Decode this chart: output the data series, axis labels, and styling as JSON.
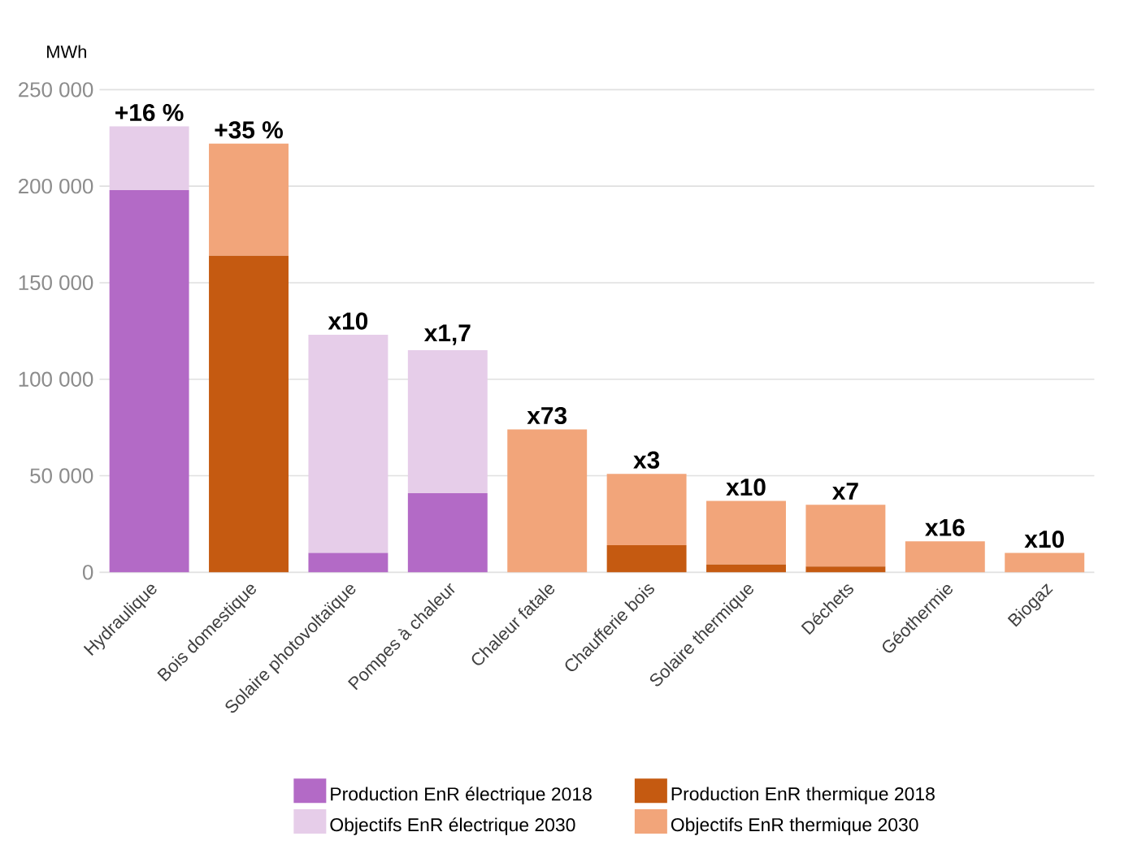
{
  "chart_data": {
    "type": "bar",
    "stacked": true,
    "ylabel": "MWh",
    "categories": [
      "Hydraulique",
      "Bois domestique",
      "Solaire photovoltaïque",
      "Pompes à chaleur",
      "Chaleur fatale",
      "Chaufferie bois",
      "Solaire thermique",
      "Déchets",
      "Géothermie",
      "Biogaz"
    ],
    "series": [
      {
        "name": "Production EnR électrique 2018",
        "color": "#b36ac6",
        "values": [
          198000,
          null,
          10000,
          41000,
          null,
          null,
          null,
          null,
          null,
          null
        ]
      },
      {
        "name": "Production EnR thermique 2018",
        "color": "#c55a11",
        "values": [
          null,
          164000,
          null,
          null,
          null,
          14000,
          4000,
          3000,
          null,
          null
        ]
      },
      {
        "name": "Objectifs EnR électrique 2030",
        "color": "#e6cde9",
        "values": [
          33000,
          null,
          113000,
          74000,
          null,
          null,
          null,
          null,
          null,
          null
        ]
      },
      {
        "name": "Objectifs EnR thermique 2030",
        "color": "#f2a57a",
        "values": [
          null,
          58000,
          null,
          null,
          74000,
          37000,
          33000,
          32000,
          16000,
          10000
        ]
      }
    ],
    "ylim": [
      0,
      250000
    ],
    "yticks": [
      {
        "value": 0,
        "label": "0"
      },
      {
        "value": 50000,
        "label": "50 000"
      },
      {
        "value": 100000,
        "label": "100 000"
      },
      {
        "value": 150000,
        "label": "150 000"
      },
      {
        "value": 200000,
        "label": "200 000"
      },
      {
        "value": 250000,
        "label": "250 000"
      }
    ],
    "grid": "y",
    "legend": "bottom",
    "annotations": [
      {
        "text": "+16 %",
        "x": "Hydraulique",
        "y": 231000
      },
      {
        "text": "+35 %",
        "x": "Bois domestique",
        "y": 222000
      },
      {
        "text": "x10",
        "x": "Solaire photovoltaïque",
        "y": 123000
      },
      {
        "text": "x1,7",
        "x": "Pompes à chaleur",
        "y": 115000
      },
      {
        "text": "x73",
        "x": "Chaleur fatale",
        "y": 74000
      },
      {
        "text": "x3",
        "x": "Chaufferie bois",
        "y": 51000
      },
      {
        "text": "x10",
        "x": "Solaire thermique",
        "y": 37000
      },
      {
        "text": "x7",
        "x": "Déchets",
        "y": 35000
      },
      {
        "text": "x16",
        "x": "Géothermie",
        "y": 16000
      },
      {
        "text": "x10",
        "x": "Biogaz",
        "y": 10000
      }
    ]
  }
}
